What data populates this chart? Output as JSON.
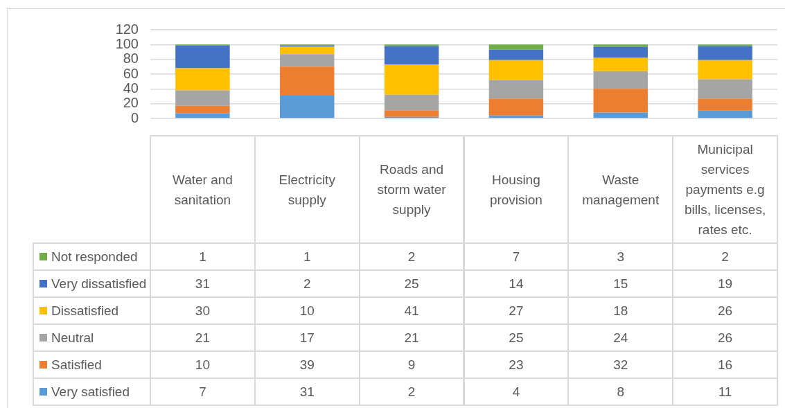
{
  "chart_data": {
    "type": "bar",
    "stacked": true,
    "categories": [
      "Water and sanitation",
      "Electricity supply",
      "Roads and storm water supply",
      "Housing provision",
      "Waste management",
      "Municipal services payments e.g bills, licenses, rates etc."
    ],
    "series": [
      {
        "name": "Very satisfied",
        "color": "#5b9bd5",
        "values": [
          7,
          31,
          2,
          4,
          8,
          11
        ]
      },
      {
        "name": "Satisfied",
        "color": "#ed7d31",
        "values": [
          10,
          39,
          9,
          23,
          32,
          16
        ]
      },
      {
        "name": "Neutral",
        "color": "#a5a5a5",
        "values": [
          21,
          17,
          21,
          25,
          24,
          26
        ]
      },
      {
        "name": "Dissatisfied",
        "color": "#ffc000",
        "values": [
          30,
          10,
          41,
          27,
          18,
          26
        ]
      },
      {
        "name": "Very dissatisfied",
        "color": "#4472c4",
        "values": [
          31,
          2,
          25,
          14,
          15,
          19
        ]
      },
      {
        "name": "Not responded",
        "color": "#70ad47",
        "values": [
          1,
          1,
          2,
          7,
          3,
          2
        ]
      }
    ],
    "ylim": [
      0,
      120
    ],
    "yticks": [
      0,
      20,
      40,
      60,
      80,
      100,
      120
    ],
    "grid": "y",
    "legend": "bottom left",
    "data_labels": true
  }
}
